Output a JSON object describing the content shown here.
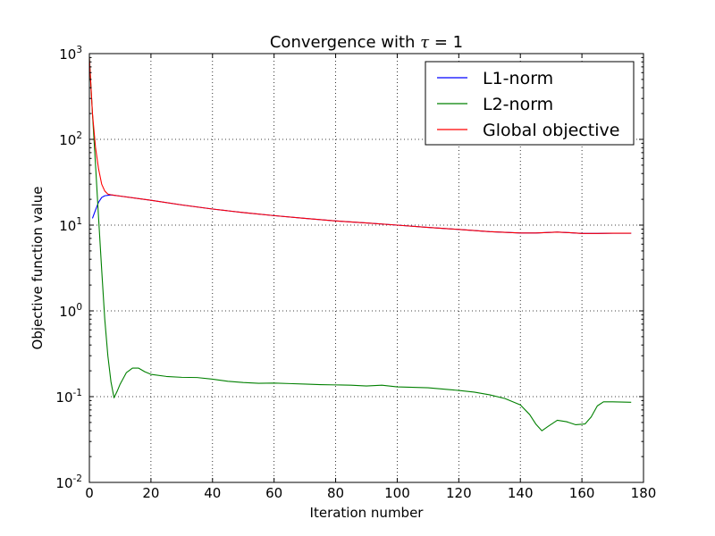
{
  "chart_data": {
    "type": "line",
    "title_prefix": "Convergence with ",
    "title_symbol": "τ",
    "title_suffix": " = 1",
    "xlabel": "Iteration number",
    "ylabel": "Objective function value",
    "xlim": [
      0,
      180
    ],
    "ylim": [
      0.01,
      1000
    ],
    "yscale": "log",
    "grid": true,
    "legend_position": "top-right",
    "x_ticks": [
      "0",
      "20",
      "40",
      "60",
      "80",
      "100",
      "120",
      "140",
      "160",
      "180"
    ],
    "y_ticks": [
      {
        "base": "10",
        "exp": "-2"
      },
      {
        "base": "10",
        "exp": "-1"
      },
      {
        "base": "10",
        "exp": "0"
      },
      {
        "base": "10",
        "exp": "1"
      },
      {
        "base": "10",
        "exp": "2"
      },
      {
        "base": "10",
        "exp": "3"
      }
    ],
    "series": [
      {
        "name": "L1-norm",
        "color": "#0000ff",
        "points": [
          [
            1,
            12
          ],
          [
            2,
            15
          ],
          [
            3,
            18.5
          ],
          [
            4,
            21
          ],
          [
            5,
            22
          ],
          [
            7,
            22.5
          ],
          [
            10,
            21.8
          ],
          [
            20,
            19.5
          ],
          [
            30,
            17.2
          ],
          [
            40,
            15.4
          ],
          [
            50,
            14
          ],
          [
            60,
            12.9
          ],
          [
            70,
            12
          ],
          [
            80,
            11.2
          ],
          [
            90,
            10.6
          ],
          [
            100,
            10
          ],
          [
            110,
            9.4
          ],
          [
            120,
            8.9
          ],
          [
            130,
            8.4
          ],
          [
            140,
            8.1
          ],
          [
            145,
            8.1
          ],
          [
            152,
            8.3
          ],
          [
            155,
            8.2
          ],
          [
            160,
            8
          ],
          [
            165,
            8
          ],
          [
            170,
            8.05
          ],
          [
            176,
            8.05
          ]
        ]
      },
      {
        "name": "L2-norm",
        "color": "#008000",
        "points": [
          [
            0,
            900
          ],
          [
            1,
            200
          ],
          [
            2,
            50
          ],
          [
            3,
            12
          ],
          [
            4,
            3
          ],
          [
            5,
            0.8
          ],
          [
            6,
            0.3
          ],
          [
            7,
            0.15
          ],
          [
            8,
            0.097
          ],
          [
            9,
            0.115
          ],
          [
            10,
            0.14
          ],
          [
            12,
            0.19
          ],
          [
            14,
            0.215
          ],
          [
            16,
            0.215
          ],
          [
            18,
            0.195
          ],
          [
            20,
            0.182
          ],
          [
            25,
            0.172
          ],
          [
            30,
            0.168
          ],
          [
            35,
            0.167
          ],
          [
            40,
            0.16
          ],
          [
            45,
            0.151
          ],
          [
            50,
            0.146
          ],
          [
            55,
            0.143
          ],
          [
            60,
            0.144
          ],
          [
            65,
            0.142
          ],
          [
            70,
            0.14
          ],
          [
            75,
            0.138
          ],
          [
            80,
            0.137
          ],
          [
            85,
            0.136
          ],
          [
            90,
            0.133
          ],
          [
            95,
            0.136
          ],
          [
            100,
            0.13
          ],
          [
            110,
            0.127
          ],
          [
            120,
            0.118
          ],
          [
            125,
            0.113
          ],
          [
            130,
            0.105
          ],
          [
            135,
            0.095
          ],
          [
            140,
            0.08
          ],
          [
            143,
            0.062
          ],
          [
            145,
            0.048
          ],
          [
            147,
            0.04
          ],
          [
            149,
            0.045
          ],
          [
            152,
            0.053
          ],
          [
            155,
            0.051
          ],
          [
            158,
            0.047
          ],
          [
            161,
            0.048
          ],
          [
            163,
            0.058
          ],
          [
            165,
            0.078
          ],
          [
            167,
            0.087
          ],
          [
            170,
            0.087
          ],
          [
            176,
            0.086
          ]
        ]
      },
      {
        "name": "Global objective",
        "color": "#ff0000",
        "points": [
          [
            0,
            900
          ],
          [
            1,
            200
          ],
          [
            2,
            80
          ],
          [
            3,
            45
          ],
          [
            4,
            30
          ],
          [
            5,
            25
          ],
          [
            6,
            23
          ],
          [
            7,
            22.6
          ],
          [
            10,
            21.8
          ],
          [
            20,
            19.5
          ],
          [
            30,
            17.2
          ],
          [
            40,
            15.4
          ],
          [
            50,
            14
          ],
          [
            60,
            12.9
          ],
          [
            70,
            12
          ],
          [
            80,
            11.2
          ],
          [
            90,
            10.6
          ],
          [
            100,
            10
          ],
          [
            110,
            9.4
          ],
          [
            120,
            8.9
          ],
          [
            130,
            8.4
          ],
          [
            140,
            8.1
          ],
          [
            145,
            8.1
          ],
          [
            152,
            8.3
          ],
          [
            155,
            8.2
          ],
          [
            160,
            8
          ],
          [
            165,
            8
          ],
          [
            170,
            8.05
          ],
          [
            176,
            8.05
          ]
        ]
      }
    ]
  }
}
